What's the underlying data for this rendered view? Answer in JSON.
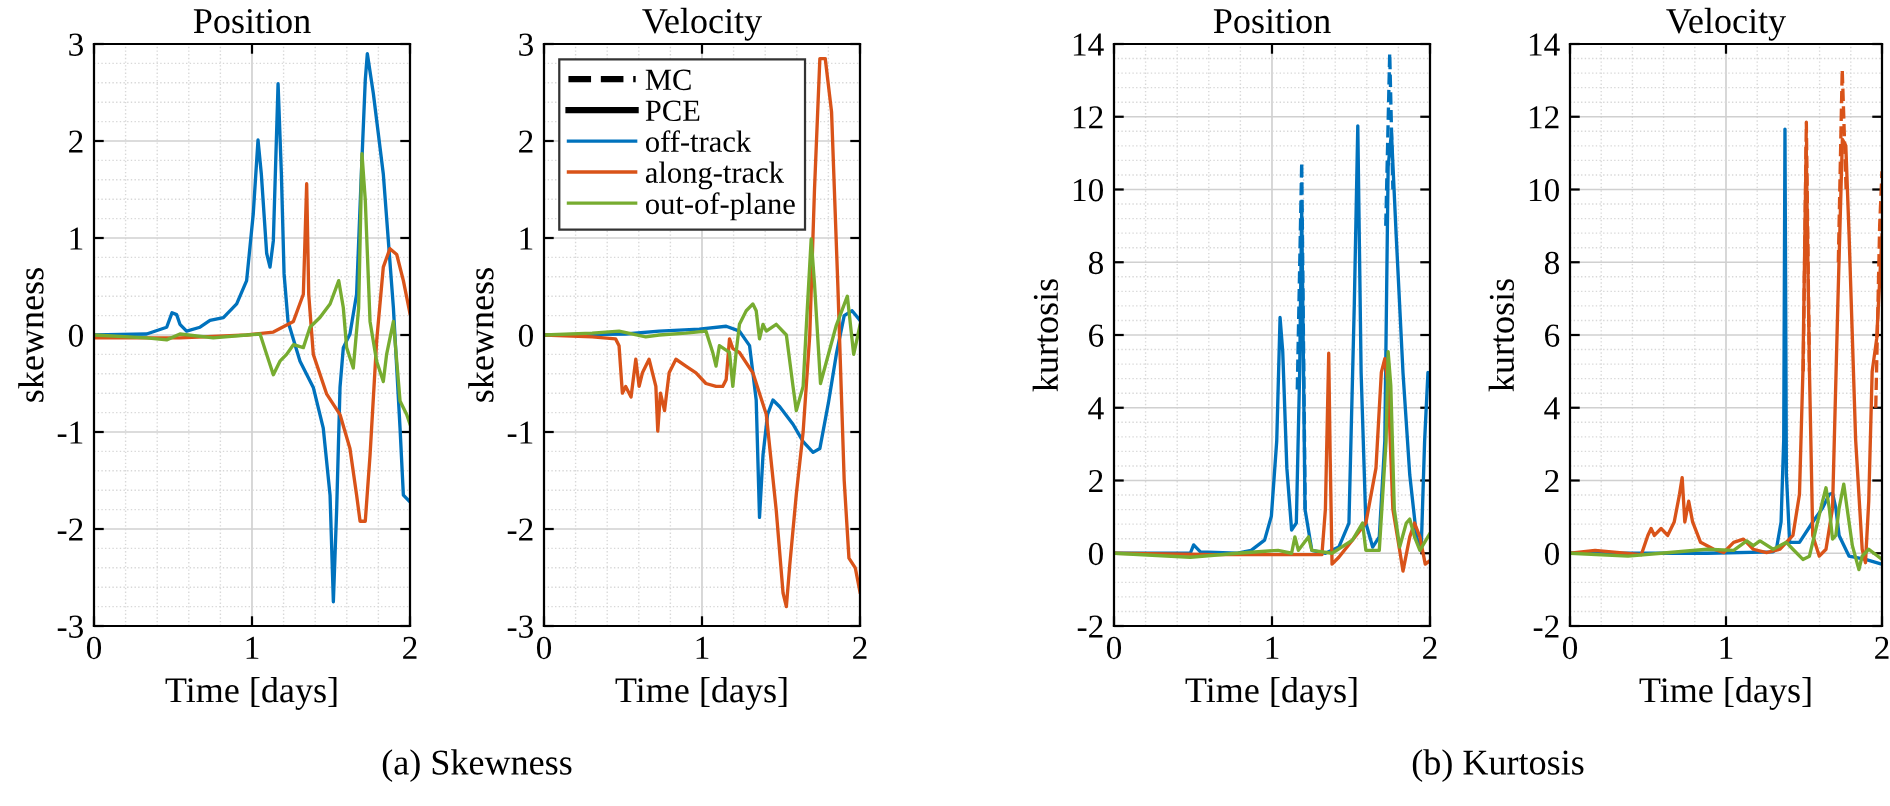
{
  "chart_data": [
    {
      "type": "line",
      "title": "Position",
      "xlabel": "Time [days]",
      "ylabel": "skewness",
      "xlim": [
        0,
        2
      ],
      "xticks": [
        0,
        1,
        2
      ],
      "ylim": [
        -3,
        3
      ],
      "yticks": [
        -3,
        -2,
        -1,
        0,
        1,
        2,
        3
      ],
      "grid": true,
      "annotations": [
        "(a) Skewness"
      ],
      "series": [
        {
          "color": "#0072bd",
          "line_style": "solid",
          "x": [
            0,
            0.333,
            0.46,
            0.494,
            0.523,
            0.544,
            0.586,
            0.671,
            0.734,
            0.819,
            0.903,
            0.966,
            1.008,
            1.038,
            1.059,
            1.093,
            1.114,
            1.135,
            1.165,
            1.186,
            1.203,
            1.228,
            1.304,
            1.388,
            1.451,
            1.494,
            1.515,
            1.536,
            1.557,
            1.578,
            1.62,
            1.662,
            1.692,
            1.717,
            1.73,
            1.768,
            1.831,
            1.895,
            1.937,
            1.958,
            2.0
          ],
          "values": [
            0,
            0.01,
            0.08,
            0.23,
            0.21,
            0.11,
            0.04,
            0.08,
            0.15,
            0.18,
            0.32,
            0.56,
            1.25,
            2.01,
            1.66,
            0.84,
            0.7,
            0.97,
            2.59,
            1.66,
            0.63,
            0.14,
            -0.27,
            -0.54,
            -0.96,
            -1.65,
            -2.75,
            -1.79,
            -0.54,
            -0.13,
            0.01,
            0.42,
            1.66,
            2.63,
            2.9,
            2.49,
            1.66,
            0.28,
            -0.96,
            -1.65,
            -1.72
          ]
        },
        {
          "color": "#d95319",
          "line_style": "solid",
          "x": [
            0,
            0.544,
            0.966,
            1.135,
            1.262,
            1.325,
            1.346,
            1.359,
            1.388,
            1.473,
            1.557,
            1.62,
            1.662,
            1.684,
            1.717,
            1.747,
            1.789,
            1.831,
            1.873,
            1.916,
            1.958,
            2.0
          ],
          "values": [
            -0.03,
            -0.03,
            0.0,
            0.03,
            0.14,
            0.42,
            1.56,
            0.42,
            -0.2,
            -0.61,
            -0.82,
            -1.17,
            -1.65,
            -1.92,
            -1.92,
            -1.24,
            -0.06,
            0.7,
            0.89,
            0.83,
            0.56,
            0.22
          ]
        },
        {
          "color": "#77ac30",
          "line_style": "solid",
          "x": [
            0,
            0.333,
            0.46,
            0.544,
            0.755,
            0.966,
            1.051,
            1.093,
            1.135,
            1.177,
            1.219,
            1.262,
            1.325,
            1.367,
            1.43,
            1.494,
            1.549,
            1.578,
            1.599,
            1.641,
            1.675,
            1.696,
            1.717,
            1.747,
            1.789,
            1.831,
            1.852,
            1.895,
            1.937,
            1.979,
            2.0
          ],
          "values": [
            0,
            -0.03,
            -0.05,
            0.01,
            -0.03,
            0,
            0.01,
            -0.2,
            -0.41,
            -0.27,
            -0.2,
            -0.1,
            -0.13,
            0.08,
            0.18,
            0.32,
            0.56,
            0.28,
            -0.13,
            -0.34,
            0.28,
            1.87,
            1.39,
            0.14,
            -0.27,
            -0.48,
            -0.2,
            0.14,
            -0.68,
            -0.82,
            -0.92
          ]
        }
      ]
    },
    {
      "type": "line",
      "title": "Velocity",
      "xlabel": "Time [days]",
      "ylabel": "skewness",
      "xlim": [
        0,
        2
      ],
      "xticks": [
        0,
        1,
        2
      ],
      "ylim": [
        -3,
        3
      ],
      "yticks": [
        -3,
        -2,
        -1,
        0,
        1,
        2,
        3
      ],
      "grid": true,
      "legend": "top left",
      "series": [
        {
          "name": "MC",
          "color": "#000000",
          "line_style": "dashed"
        },
        {
          "name": "PCE",
          "color": "#000000",
          "line_style": "solid"
        },
        {
          "name": "off-track",
          "color": "#0072bd",
          "line_style": "solid",
          "x": [
            0,
            0.517,
            0.729,
            0.983,
            1.153,
            1.237,
            1.301,
            1.343,
            1.364,
            1.386,
            1.415,
            1.449,
            1.492,
            1.576,
            1.64,
            1.703,
            1.746,
            1.8,
            1.85,
            1.9,
            1.95,
            2.0
          ],
          "values": [
            0,
            0.01,
            0.04,
            0.06,
            0.09,
            0.04,
            -0.11,
            -0.67,
            -1.88,
            -1.24,
            -0.82,
            -0.67,
            -0.74,
            -0.92,
            -1.1,
            -1.21,
            -1.17,
            -0.7,
            -0.2,
            0.2,
            0.25,
            0.15
          ]
        },
        {
          "name": "along-track",
          "color": "#d95319",
          "line_style": "solid",
          "x": [
            0,
            0.305,
            0.453,
            0.475,
            0.496,
            0.517,
            0.551,
            0.581,
            0.602,
            0.623,
            0.665,
            0.708,
            0.72,
            0.737,
            0.763,
            0.792,
            0.835,
            0.898,
            0.962,
            1.025,
            1.089,
            1.131,
            1.153,
            1.174,
            1.195,
            1.237,
            1.322,
            1.407,
            1.47,
            1.513,
            1.534,
            1.555,
            1.597,
            1.64,
            1.682,
            1.712,
            1.746,
            1.78,
            1.82,
            1.86,
            1.9,
            1.93,
            1.97,
            2.0
          ],
          "values": [
            0,
            -0.02,
            -0.04,
            -0.11,
            -0.6,
            -0.53,
            -0.64,
            -0.25,
            -0.53,
            -0.39,
            -0.25,
            -0.53,
            -0.99,
            -0.6,
            -0.78,
            -0.39,
            -0.25,
            -0.32,
            -0.39,
            -0.5,
            -0.53,
            -0.53,
            -0.46,
            -0.04,
            -0.14,
            -0.18,
            -0.39,
            -0.82,
            -1.81,
            -2.66,
            -2.8,
            -2.38,
            -1.64,
            -1.0,
            0.0,
            1.5,
            2.85,
            2.85,
            2.3,
            0.5,
            -1.5,
            -2.3,
            -2.4,
            -2.65
          ]
        },
        {
          "name": "out-of-plane",
          "color": "#77ac30",
          "line_style": "solid",
          "x": [
            0,
            0.305,
            0.475,
            0.644,
            0.729,
            0.898,
            1.025,
            1.068,
            1.089,
            1.11,
            1.174,
            1.195,
            1.216,
            1.237,
            1.28,
            1.322,
            1.343,
            1.364,
            1.386,
            1.407,
            1.47,
            1.534,
            1.576,
            1.597,
            1.64,
            1.661,
            1.691,
            1.712,
            1.75,
            1.85,
            1.92,
            1.96,
            2.0
          ],
          "values": [
            0,
            0.02,
            0.04,
            -0.02,
            0,
            0.02,
            0.04,
            -0.18,
            -0.32,
            -0.11,
            -0.18,
            -0.53,
            -0.18,
            0.11,
            0.25,
            0.32,
            0.25,
            -0.04,
            0.11,
            0.04,
            0.11,
            0,
            -0.53,
            -0.78,
            -0.53,
            0.11,
            0.99,
            0.53,
            -0.5,
            0.1,
            0.4,
            -0.2,
            0.1
          ]
        }
      ]
    },
    {
      "type": "line",
      "title": "Position",
      "xlabel": "Time [days]",
      "ylabel": "kurtosis",
      "xlim": [
        0,
        2
      ],
      "xticks": [
        0,
        1,
        2
      ],
      "ylim": [
        -2,
        14
      ],
      "yticks": [
        -2,
        0,
        2,
        4,
        6,
        8,
        10,
        12,
        14
      ],
      "grid": true,
      "annotations": [
        "(b) Kurtosis"
      ],
      "series": [
        {
          "color": "#0072bd",
          "line_style": "dashed",
          "x": [
            1.16,
            1.188,
            1.21,
            1.5,
            1.72,
            1.745,
            1.765
          ],
          "values": [
            4.5,
            10.75,
            1.2,
            null,
            9,
            13.75,
            10
          ]
        },
        {
          "color": "#0072bd",
          "line_style": "solid",
          "x": [
            0,
            0.483,
            0.504,
            0.547,
            0.782,
            0.868,
            0.953,
            0.996,
            1.03,
            1.051,
            1.068,
            1.094,
            1.124,
            1.154,
            1.175,
            1.188,
            1.209,
            1.252,
            1.338,
            1.423,
            1.487,
            1.521,
            1.543,
            1.564,
            1.594,
            1.637,
            1.679,
            1.714,
            1.735,
            1.756,
            1.786,
            1.829,
            1.872,
            1.915,
            1.944,
            1.966,
            1.987,
            2.0
          ],
          "values": [
            0,
            0,
            0.23,
            0.04,
            0,
            0.08,
            0.36,
            1.02,
            3.09,
            6.48,
            5.54,
            2.34,
            0.64,
            0.83,
            4.97,
            9.49,
            1.21,
            0.08,
            0,
            0.17,
            0.83,
            6.86,
            11.75,
            4.97,
            0.83,
            0.17,
            0.45,
            3.09,
            10.62,
            11.56,
            8.74,
            4.97,
            2.15,
            0.45,
            0.08,
            3.09,
            4.97,
            4.6
          ]
        },
        {
          "color": "#d95319",
          "line_style": "solid",
          "x": [
            0,
            0.654,
            1.316,
            1.338,
            1.359,
            1.368,
            1.38,
            1.423,
            1.509,
            1.594,
            1.658,
            1.692,
            1.714,
            1.735,
            1.765,
            1.808,
            1.829,
            1.872,
            1.902,
            1.936,
            1.97,
            2.0
          ],
          "values": [
            0,
            -0.04,
            -0.04,
            1.21,
            5.5,
            2.71,
            -0.3,
            -0.11,
            0.36,
            0.83,
            2.34,
            4.97,
            5.35,
            4.6,
            1.21,
            0.08,
            -0.49,
            0.45,
            0.83,
            0.45,
            -0.3,
            -0.2
          ]
        },
        {
          "color": "#77ac30",
          "line_style": "solid",
          "x": [
            0,
            0.483,
            0.782,
            1.038,
            1.124,
            1.145,
            1.167,
            1.231,
            1.252,
            1.38,
            1.509,
            1.573,
            1.594,
            1.679,
            1.722,
            1.735,
            1.752,
            1.774,
            1.808,
            1.85,
            1.872,
            1.902,
            1.936,
            2.0
          ],
          "values": [
            0,
            -0.11,
            0,
            0.08,
            0,
            0.45,
            0.08,
            0.45,
            0.08,
            0,
            0.36,
            0.83,
            0.08,
            0.08,
            3.09,
            5.54,
            4.6,
            1.21,
            0.17,
            0.83,
            0.94,
            0.45,
            0.08,
            0.55
          ]
        }
      ]
    },
    {
      "type": "line",
      "title": "Velocity",
      "xlabel": "Time [days]",
      "ylabel": "kurtosis",
      "xlim": [
        0,
        2
      ],
      "xticks": [
        0,
        1,
        2
      ],
      "ylim": [
        -2,
        14
      ],
      "yticks": [
        -2,
        0,
        2,
        4,
        6,
        8,
        10,
        12,
        14
      ],
      "grid": true,
      "series": [
        {
          "color": "#d95319",
          "line_style": "dashed",
          "x": [
            1.495,
            1.515,
            1.535,
            1.6,
            1.72,
            1.745,
            1.77,
            1.9,
            1.96,
            1.985,
            2.0
          ],
          "values": [
            5,
            11.85,
            5,
            null,
            8,
            13.3,
            10,
            null,
            4,
            9,
            10.5
          ]
        },
        {
          "color": "#0072bd",
          "line_style": "solid",
          "x": [
            0,
            0.879,
            1.302,
            1.323,
            1.353,
            1.37,
            1.378,
            1.387,
            1.408,
            1.471,
            1.556,
            1.619,
            1.662,
            1.683,
            1.704,
            1.725,
            1.789,
            1.894,
            2.0
          ],
          "values": [
            0,
            0,
            0.04,
            0.11,
            0.86,
            3.12,
            11.66,
            2.18,
            0.3,
            0.3,
            0.86,
            1.24,
            1.62,
            1.65,
            1.24,
            0.49,
            -0.08,
            -0.17,
            -0.3
          ]
        },
        {
          "color": "#d95319",
          "line_style": "solid",
          "x": [
            0,
            0.161,
            0.457,
            0.499,
            0.52,
            0.541,
            0.584,
            0.626,
            0.668,
            0.702,
            0.719,
            0.736,
            0.761,
            0.786,
            0.837,
            0.922,
            0.985,
            1.049,
            1.112,
            1.175,
            1.26,
            1.345,
            1.429,
            1.471,
            1.493,
            1.514,
            1.535,
            1.556,
            1.598,
            1.641,
            1.683,
            1.717,
            1.746,
            1.768,
            1.789,
            1.831,
            1.873,
            1.894,
            1.915,
            1.937,
            1.966,
            2.0
          ],
          "values": [
            0,
            0.08,
            -0.04,
            0.49,
            0.68,
            0.49,
            0.68,
            0.49,
            0.86,
            1.62,
            2.08,
            0.86,
            1.43,
            0.86,
            0.3,
            0.11,
            0.02,
            0.3,
            0.39,
            0.11,
            0.02,
            0.11,
            0.49,
            1.62,
            5.0,
            11.2,
            5.0,
            0.49,
            -0.08,
            0.11,
            1.24,
            6.87,
            11.38,
            11.2,
            8.75,
            3.12,
            0.11,
            -0.26,
            1.43,
            5.0,
            5.9,
            8.75
          ]
        },
        {
          "color": "#77ac30",
          "line_style": "solid",
          "x": [
            0,
            0.372,
            0.584,
            0.879,
            1.049,
            1.133,
            1.175,
            1.218,
            1.302,
            1.387,
            1.429,
            1.493,
            1.535,
            1.577,
            1.619,
            1.641,
            1.662,
            1.683,
            1.704,
            1.725,
            1.755,
            1.776,
            1.81,
            1.852,
            1.873,
            1.915,
            2.0
          ],
          "values": [
            0,
            -0.08,
            0,
            0.11,
            0.08,
            0.34,
            0.21,
            0.34,
            0.11,
            0.3,
            0.11,
            -0.17,
            -0.08,
            0.68,
            1.43,
            1.8,
            1.24,
            0.39,
            0.49,
            1.24,
            1.9,
            1.24,
            0.21,
            -0.45,
            -0.08,
            0.11,
            -0.17
          ]
        }
      ]
    }
  ]
}
